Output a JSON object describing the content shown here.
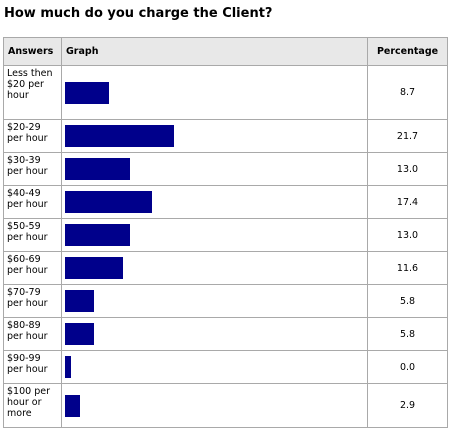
{
  "title": "How much do you charge the Client?",
  "table": {
    "headers": {
      "answers": "Answers",
      "graph": "Graph",
      "percentage": "Percentage"
    },
    "bar_color": "#00008b",
    "rows": [
      {
        "label": "Less then $20 per hour",
        "value": "8.7"
      },
      {
        "label": "$20-29 per hour",
        "value": "21.7"
      },
      {
        "label": "$30-39 per hour",
        "value": "13.0"
      },
      {
        "label": "$40-49 per hour",
        "value": "17.4"
      },
      {
        "label": "$50-59 per hour",
        "value": "13.0"
      },
      {
        "label": "$60-69 per hour",
        "value": "11.6"
      },
      {
        "label": "$70-79 per hour",
        "value": "5.8"
      },
      {
        "label": "$80-89 per hour",
        "value": "5.8"
      },
      {
        "label": "$90-99 per hour",
        "value": "0.0"
      },
      {
        "label": "$100 per hour or more",
        "value": "2.9"
      }
    ]
  },
  "chart_data": {
    "type": "bar",
    "categories": [
      "Less then $20 per hour",
      "$20-29 per hour",
      "$30-39 per hour",
      "$40-49 per hour",
      "$50-59 per hour",
      "$60-69 per hour",
      "$70-79 per hour",
      "$80-89 per hour",
      "$90-99 per hour",
      "$100 per hour or more"
    ],
    "values": [
      8.7,
      21.7,
      13.0,
      17.4,
      13.0,
      11.6,
      5.8,
      5.8,
      0.0,
      2.9
    ],
    "orientation": "horizontal",
    "title": "How much do you charge the Client?",
    "xlabel": "",
    "ylabel": ""
  }
}
